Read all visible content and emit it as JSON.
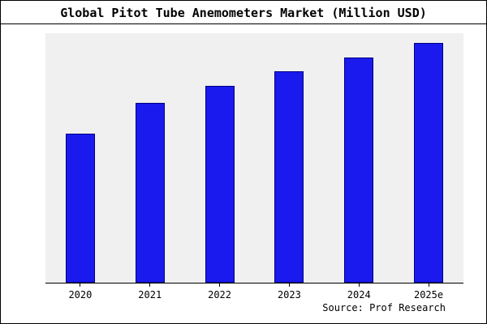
{
  "chart_data": {
    "type": "bar",
    "title": "Global Pitot Tube Anemometers Market (Million USD)",
    "categories": [
      "2020",
      "2021",
      "2022",
      "2023",
      "2024",
      "2025e"
    ],
    "values": [
      62,
      75,
      82,
      88,
      94,
      100
    ],
    "xlabel": "",
    "ylabel": "",
    "ylim": [
      0,
      104
    ],
    "grid": false,
    "legend": false,
    "bar_color": "#1a1aee",
    "bar_border_color": "#000080",
    "plot_bg": "#f0f0f0"
  },
  "footer": {
    "source": "Source: Prof Research"
  }
}
